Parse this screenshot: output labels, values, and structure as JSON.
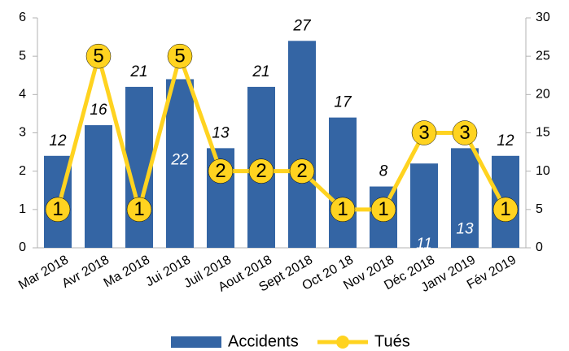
{
  "chart_data": {
    "type": "bar-line",
    "categories": [
      "Mar 2018",
      "Avr 2018",
      "Ma 2018",
      "Jui 2018",
      "Juil 2018",
      "Aout 2018",
      "Sept 2018",
      "Oct 20 18",
      "Nov 2018",
      "Déc 2018",
      "Janv 2019",
      "Fév 2019"
    ],
    "series": [
      {
        "name": "Accidents",
        "type": "bar",
        "axis": "y2",
        "color": "#3465a4",
        "values": [
          12,
          16,
          21,
          22,
          13,
          21,
          27,
          17,
          8,
          11,
          13,
          12
        ]
      },
      {
        "name": "Tués",
        "type": "line",
        "axis": "y",
        "color": "#ffd320",
        "values": [
          1,
          5,
          1,
          5,
          2,
          2,
          2,
          1,
          1,
          3,
          3,
          1
        ]
      }
    ],
    "ylim": [
      0,
      6
    ],
    "yticks": [
      0,
      1,
      2,
      3,
      4,
      5,
      6
    ],
    "y2lim": [
      0,
      30
    ],
    "y2ticks": [
      0,
      5,
      10,
      15,
      20,
      25,
      30
    ],
    "legend": "bottom"
  }
}
